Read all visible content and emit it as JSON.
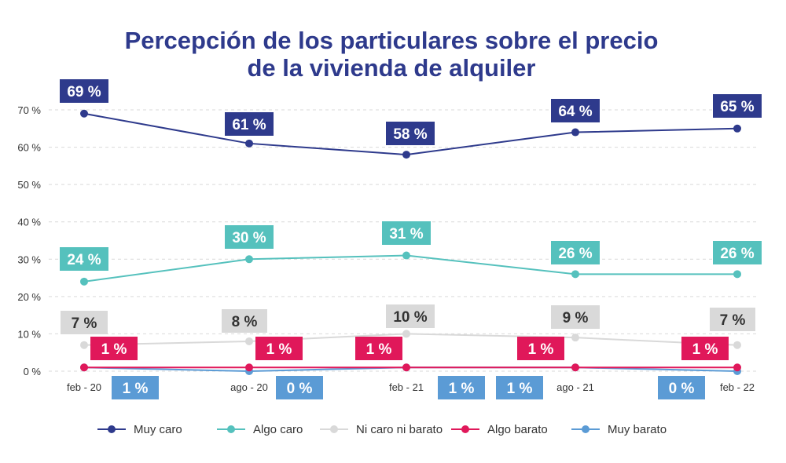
{
  "chart_data": {
    "type": "line",
    "title": [
      "Percepción de los particulares sobre el precio",
      "de la vivienda de alquiler"
    ],
    "categories": [
      "feb - 20",
      "ago - 20",
      "feb - 21",
      "ago - 21",
      "feb - 22"
    ],
    "y_ticks": [
      "0 %",
      "10 %",
      "20 %",
      "30 %",
      "40 %",
      "50 %",
      "60 %",
      "70 %"
    ],
    "ylim": [
      0,
      70
    ],
    "grid": true,
    "legend_position": "bottom",
    "series": [
      {
        "name": "Muy caro",
        "color": "#2e3a8c",
        "values": [
          69,
          61,
          58,
          64,
          65
        ],
        "labels": [
          "69 %",
          "61 %",
          "58 %",
          "64 %",
          "65 %"
        ],
        "label_text_color": "#ffffff"
      },
      {
        "name": "Algo caro",
        "color": "#55c1bd",
        "values": [
          24,
          30,
          31,
          26,
          26
        ],
        "labels": [
          "24 %",
          "30 %",
          "31 %",
          "26 %",
          "26 %"
        ],
        "label_text_color": "#ffffff"
      },
      {
        "name": "Ni caro ni barato",
        "color": "#d9d9d9",
        "values": [
          7,
          8,
          10,
          9,
          7
        ],
        "labels": [
          "7 %",
          "8 %",
          "10 %",
          "9 %",
          "7 %"
        ],
        "label_text_color": "#333333"
      },
      {
        "name": "Algo barato",
        "color": "#e0185a",
        "values": [
          1,
          1,
          1,
          1,
          1
        ],
        "labels": [
          "1 %",
          "1 %",
          "1 %",
          "1 %",
          "1 %"
        ],
        "label_text_color": "#ffffff"
      },
      {
        "name": "Muy barato",
        "color": "#5b9bd5",
        "values": [
          1,
          0,
          1,
          1,
          0
        ],
        "labels": [
          "1 %",
          "0 %",
          "1 %",
          "1 %",
          "0 %"
        ],
        "label_text_color": "#ffffff"
      }
    ]
  }
}
